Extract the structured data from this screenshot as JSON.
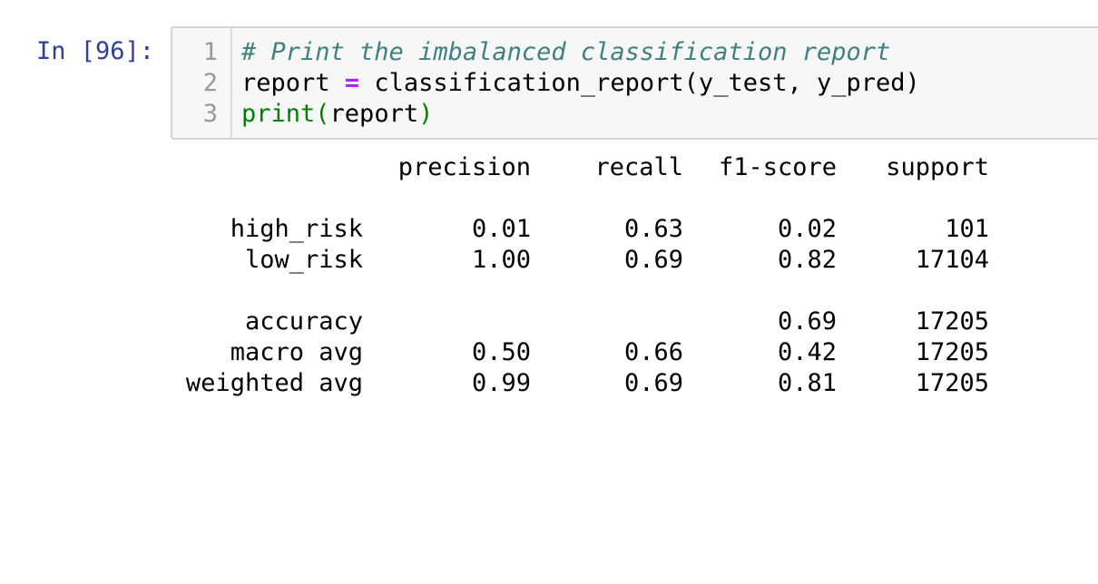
{
  "cell": {
    "prompt": "In [96]:",
    "lines": [
      {
        "number": "1",
        "comment": "# Print the imbalanced classification report"
      },
      {
        "number": "2",
        "pre": "report ",
        "op": "=",
        "post": " classification_report(y_test, y_pred)"
      },
      {
        "number": "3",
        "builtin": "print",
        "open": "(",
        "arg": "report",
        "close": ")"
      }
    ]
  },
  "report": {
    "headers": {
      "precision": "precision",
      "recall": "recall",
      "f1": "f1-score",
      "support": "support"
    },
    "rows": [
      {
        "label": "high_risk",
        "precision": "0.01",
        "recall": "0.63",
        "f1": "0.02",
        "support": "101"
      },
      {
        "label": "low_risk",
        "precision": "1.00",
        "recall": "0.69",
        "f1": "0.82",
        "support": "17104"
      }
    ],
    "summary": [
      {
        "label": "accuracy",
        "precision": "",
        "recall": "",
        "f1": "0.69",
        "support": "17205"
      },
      {
        "label": "macro avg",
        "precision": "0.50",
        "recall": "0.66",
        "f1": "0.42",
        "support": "17205"
      },
      {
        "label": "weighted avg",
        "precision": "0.99",
        "recall": "0.69",
        "f1": "0.81",
        "support": "17205"
      }
    ]
  }
}
